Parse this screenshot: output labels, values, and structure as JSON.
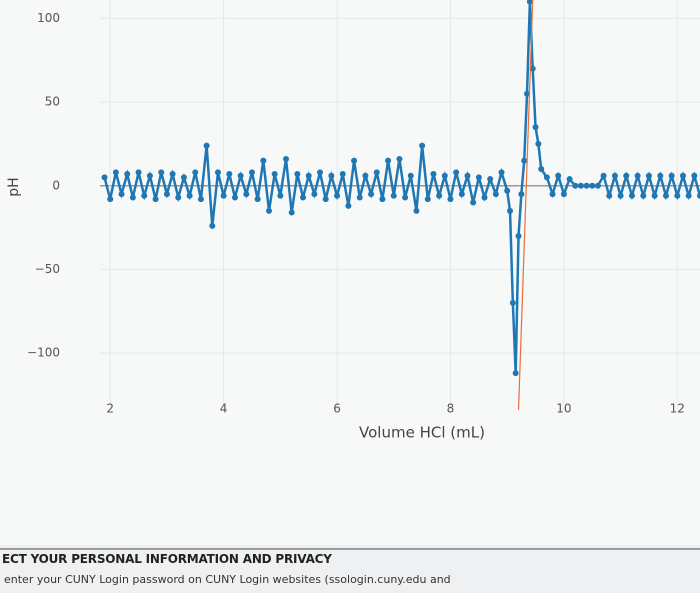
{
  "chart_data": {
    "type": "line",
    "ylabel": "pH",
    "xlabel": "Volume HCl (mL)",
    "xlim": [
      1.82,
      12.4
    ],
    "ylim": [
      -134,
      111
    ],
    "xticks": [
      2,
      4,
      6,
      8,
      10,
      12
    ],
    "yticks": [
      {
        "value": -100,
        "label": "−100"
      },
      {
        "value": -50,
        "label": "−50"
      },
      0,
      50,
      100
    ],
    "grid": true,
    "series": [
      {
        "color": "#1f77b4",
        "x": [
          1.9,
          2.0,
          2.1,
          2.2,
          2.3,
          2.4,
          2.5,
          2.6,
          2.7,
          2.8,
          2.9,
          3.0,
          3.1,
          3.2,
          3.3,
          3.4,
          3.5,
          3.6,
          3.7,
          3.8,
          3.9,
          4.0,
          4.1,
          4.2,
          4.3,
          4.4,
          4.5,
          4.6,
          4.7,
          4.8,
          4.9,
          5.0,
          5.1,
          5.2,
          5.3,
          5.4,
          5.5,
          5.6,
          5.7,
          5.8,
          5.9,
          6.0,
          6.1,
          6.2,
          6.3,
          6.4,
          6.5,
          6.6,
          6.7,
          6.8,
          6.9,
          7.0,
          7.1,
          7.2,
          7.3,
          7.4,
          7.5,
          7.6,
          7.7,
          7.8,
          7.9,
          8.0,
          8.1,
          8.2,
          8.3,
          8.4,
          8.5,
          8.6,
          8.7,
          8.8,
          8.9,
          9.0,
          9.05,
          9.1,
          9.15,
          9.2,
          9.25,
          9.3,
          9.35,
          9.4,
          9.45,
          9.5,
          9.55,
          9.6,
          9.7,
          9.8,
          9.9,
          10.0,
          10.1,
          10.2,
          10.3,
          10.4,
          10.5,
          10.6,
          10.7,
          10.8,
          10.9,
          11.0,
          11.1,
          11.2,
          11.3,
          11.4,
          11.5,
          11.6,
          11.7,
          11.8,
          11.9,
          12.0,
          12.1,
          12.2,
          12.3,
          12.4
        ],
        "values": [
          5,
          -8,
          8,
          -5,
          7,
          -7,
          8,
          -6,
          6,
          -8,
          8,
          -5,
          7,
          -7,
          5,
          -6,
          8,
          -8,
          24,
          -24,
          8,
          -6,
          7,
          -7,
          6,
          -5,
          8,
          -8,
          15,
          -15,
          7,
          -6,
          16,
          -16,
          7,
          -7,
          6,
          -5,
          8,
          -8,
          6,
          -6,
          7,
          -12,
          15,
          -7,
          6,
          -5,
          8,
          -8,
          15,
          -6,
          16,
          -7,
          6,
          -15,
          24,
          -8,
          7,
          -6,
          6,
          -8,
          8,
          -5,
          6,
          -10,
          5,
          -7,
          4,
          -5,
          8,
          -3,
          -15,
          -70,
          -112,
          -30,
          -5,
          15,
          55,
          110,
          70,
          35,
          25,
          10,
          5,
          -5,
          6,
          -5,
          4,
          0,
          0,
          0,
          0,
          0,
          6,
          -6,
          6,
          -6,
          6,
          -6,
          6,
          -6,
          6,
          -6,
          6,
          -6,
          6,
          -6,
          6,
          -6,
          6,
          -6
        ]
      },
      {
        "color": "#e8703a",
        "x": [
          9.2,
          9.45
        ],
        "values": [
          -134,
          111
        ]
      }
    ]
  },
  "footer": {
    "heading": "ECT YOUR PERSONAL INFORMATION AND PRIVACY",
    "text": "enter your CUNY Login password on CUNY Login websites (ssologin.cuny.edu and"
  }
}
